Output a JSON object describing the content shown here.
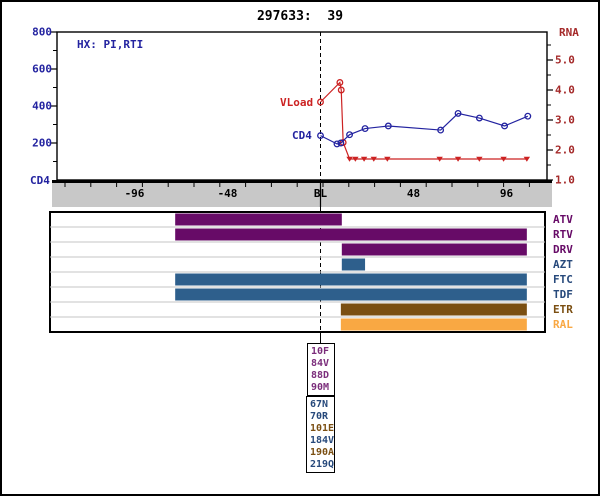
{
  "title": "297633:  39",
  "hx_label": "HX: PI,RTI",
  "colors": {
    "cd4_series": "#2323A0",
    "vload_series": "#CC2222",
    "rna_axis_text": "#A52A2A",
    "cd4_axis_text": "#2323A0",
    "x_band_fill": "#C8C8C8",
    "panel_gridline": "#C4C4C4",
    "pi_bar": "#670B67",
    "nrti_bar": "#2E5F8C",
    "nnrti_bar": "#7B4F12",
    "ii_bar": "#F9A843",
    "mutation_purple": "#7B2D7B",
    "mutation_navy": "#27497B",
    "mutation_brown": "#7B4F12"
  },
  "chart_data": {
    "type": "line",
    "title": "297633:  39",
    "x_axis": {
      "unit": "weeks from baseline",
      "ticks": [
        {
          "week": -96,
          "label": "-96"
        },
        {
          "week": -48,
          "label": "-48"
        },
        {
          "week": 0,
          "label": "BL"
        },
        {
          "week": 48,
          "label": "48"
        },
        {
          "week": 96,
          "label": "96"
        }
      ],
      "range_weeks": [
        -136,
        117
      ]
    },
    "left_axis": {
      "label": "CD4",
      "ticks": [
        {
          "value": 800,
          "label": "800"
        },
        {
          "value": 600,
          "label": "600"
        },
        {
          "value": 400,
          "label": "400"
        },
        {
          "value": 200,
          "label": "200"
        }
      ],
      "minor_ticks": [
        100,
        300,
        500,
        700
      ],
      "range": [
        0,
        800
      ]
    },
    "right_axis": {
      "label": "RNA",
      "ticks": [
        {
          "value": 5.0,
          "label": "5.0"
        },
        {
          "value": 4.0,
          "label": "4.0"
        },
        {
          "value": 3.0,
          "label": "3.0"
        },
        {
          "value": 2.0,
          "label": "2.0"
        },
        {
          "value": 1.0,
          "label": "1.0"
        }
      ],
      "minor_ticks": [
        1.5,
        2.5,
        3.5,
        4.5,
        5.5
      ],
      "range": [
        1.0,
        5.93
      ]
    },
    "series": [
      {
        "name": "VLoad",
        "axis": "right",
        "color": "#CC2222",
        "marker": "open-circle",
        "points": [
          {
            "week": 0,
            "value": 3.6
          },
          {
            "week": 10,
            "value": 4.25
          },
          {
            "week": 10.7,
            "value": 4.0
          },
          {
            "week": 11.7,
            "value": 2.25
          }
        ],
        "censored_marker": "filled-triangle-down",
        "censored_points": [
          {
            "week": 15,
            "value": 1.7
          },
          {
            "week": 18,
            "value": 1.7
          },
          {
            "week": 22.5,
            "value": 1.7
          },
          {
            "week": 27.5,
            "value": 1.7
          },
          {
            "week": 34.5,
            "value": 1.7
          },
          {
            "week": 61.5,
            "value": 1.7
          },
          {
            "week": 71,
            "value": 1.7
          },
          {
            "week": 82,
            "value": 1.7
          },
          {
            "week": 94.5,
            "value": 1.7
          },
          {
            "week": 106.5,
            "value": 1.7
          }
        ]
      },
      {
        "name": "CD4",
        "axis": "left",
        "color": "#2323A0",
        "marker": "open-circle",
        "points": [
          {
            "week": 0,
            "value": 240
          },
          {
            "week": 8.5,
            "value": 195
          },
          {
            "week": 10.5,
            "value": 200
          },
          {
            "week": 15,
            "value": 245
          },
          {
            "week": 23,
            "value": 278
          },
          {
            "week": 35,
            "value": 292
          },
          {
            "week": 62,
            "value": 270
          },
          {
            "week": 71,
            "value": 360
          },
          {
            "week": 82,
            "value": 335
          },
          {
            "week": 95,
            "value": 292
          },
          {
            "week": 107,
            "value": 345
          }
        ]
      }
    ],
    "treatment_bars": [
      {
        "label": "ATV",
        "color": "#670B67",
        "label_color": "#670B67",
        "start_week": -75,
        "end_week": 11
      },
      {
        "label": "RTV",
        "color": "#670B67",
        "label_color": "#670B67",
        "start_week": -75,
        "end_week": 106.5
      },
      {
        "label": "DRV",
        "color": "#670B67",
        "label_color": "#670B67",
        "start_week": 11,
        "end_week": 106.5
      },
      {
        "label": "AZT",
        "color": "#2E5F8C",
        "label_color": "#27497B",
        "start_week": 11,
        "end_week": 23
      },
      {
        "label": "FTC",
        "color": "#2E5F8C",
        "label_color": "#27497B",
        "start_week": -75,
        "end_week": 106.5
      },
      {
        "label": "TDF",
        "color": "#2E5F8C",
        "label_color": "#27497B",
        "start_week": -75,
        "end_week": 106.5
      },
      {
        "label": "ETR",
        "color": "#7B4F12",
        "label_color": "#7B4F12",
        "start_week": 10.5,
        "end_week": 106.5
      },
      {
        "label": "RAL",
        "color": "#F9A843",
        "label_color": "#F9A843",
        "start_week": 10.5,
        "end_week": 106.5
      }
    ],
    "mutation_boxes": [
      {
        "lines": [
          {
            "text": "10F",
            "color": "#7B2D7B"
          },
          {
            "text": "84V",
            "color": "#7B2D7B"
          },
          {
            "text": "88D",
            "color": "#7B2D7B"
          },
          {
            "text": "90M",
            "color": "#7B2D7B"
          }
        ]
      },
      {
        "lines": [
          {
            "text": "67N",
            "color": "#27497B"
          },
          {
            "text": "70R",
            "color": "#27497B"
          },
          {
            "text": "101E",
            "color": "#7B4F12"
          },
          {
            "text": "184V",
            "color": "#27497B"
          },
          {
            "text": "190A",
            "color": "#7B4F12"
          },
          {
            "text": "219Q",
            "color": "#27497B"
          }
        ]
      }
    ]
  }
}
